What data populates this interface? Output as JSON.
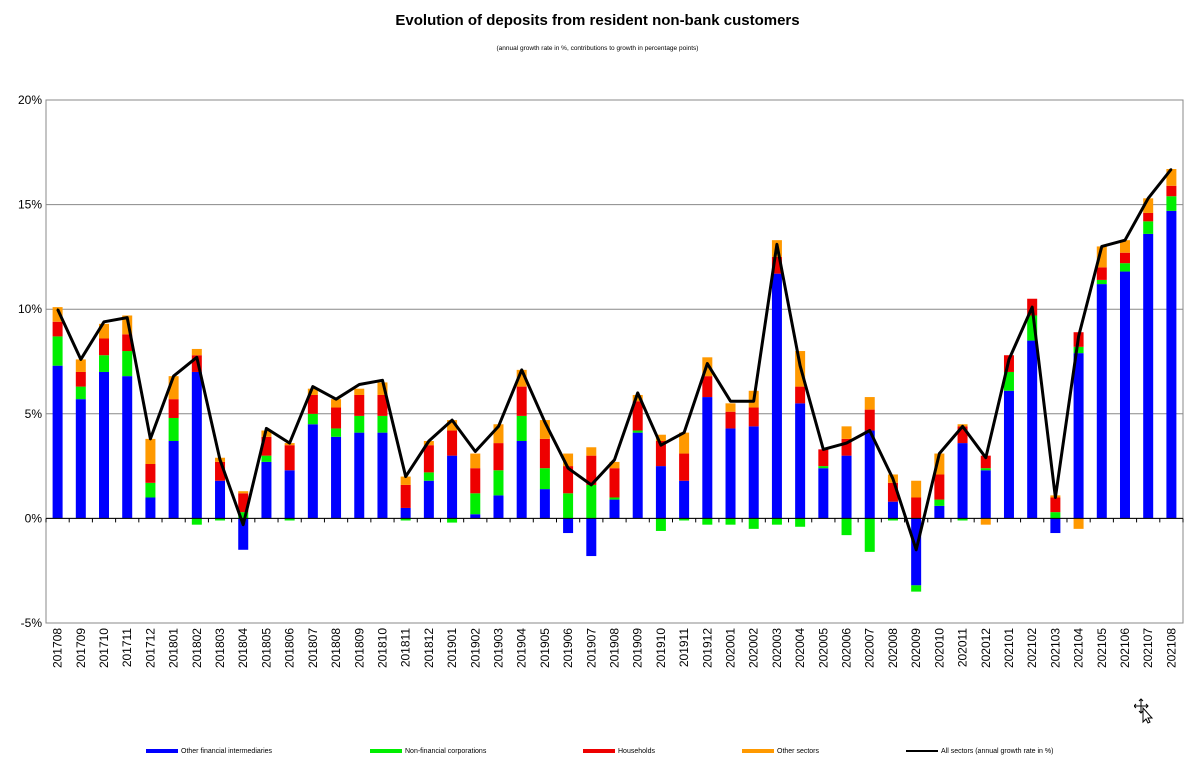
{
  "chart_data": {
    "type": "bar",
    "stacked": true,
    "title": "Evolution of deposits from resident non-bank customers",
    "subtitle": "(annual growth rate in %, contributions to growth in percentage points)",
    "xlabel": "",
    "ylabel": "",
    "ylim": [
      -5,
      20
    ],
    "yticks": [
      "-5%",
      "0%",
      "5%",
      "10%",
      "15%",
      "20%"
    ],
    "grid": true,
    "legend_position": "bottom",
    "categories": [
      "201708",
      "201709",
      "201710",
      "201711",
      "201712",
      "201801",
      "201802",
      "201803",
      "201804",
      "201805",
      "201806",
      "201807",
      "201808",
      "201809",
      "201810",
      "201811",
      "201812",
      "201901",
      "201902",
      "201903",
      "201904",
      "201905",
      "201906",
      "201907",
      "201908",
      "201909",
      "201910",
      "201911",
      "201912",
      "202001",
      "202002",
      "202003",
      "202004",
      "202005",
      "202006",
      "202007",
      "202008",
      "202009",
      "202010",
      "202011",
      "202012",
      "202101",
      "202102",
      "202103",
      "202104",
      "202105",
      "202106",
      "202107",
      "202108"
    ],
    "series": [
      {
        "name": "Other financial intermediaries",
        "color": "#0000FF",
        "values": [
          7.3,
          5.7,
          7.0,
          6.8,
          1.0,
          3.7,
          7.0,
          1.8,
          -1.5,
          2.7,
          2.3,
          4.5,
          3.9,
          4.1,
          4.1,
          0.5,
          1.8,
          3.0,
          0.2,
          1.1,
          3.7,
          1.4,
          -0.7,
          -1.8,
          0.9,
          4.1,
          2.5,
          1.8,
          5.8,
          4.3,
          4.4,
          11.7,
          5.5,
          2.4,
          3.0,
          4.2,
          0.8,
          -3.2,
          0.6,
          3.6,
          2.3,
          6.1,
          8.5,
          -0.7,
          7.9,
          11.2,
          11.8,
          13.6,
          14.7
        ]
      },
      {
        "name": "Non-financial corporations",
        "color": "#00EE00",
        "values": [
          1.4,
          0.6,
          0.8,
          1.2,
          0.7,
          1.1,
          -0.3,
          -0.1,
          0.3,
          0.3,
          -0.1,
          0.5,
          0.4,
          0.8,
          0.8,
          -0.1,
          0.4,
          -0.2,
          1.0,
          1.2,
          1.2,
          1.0,
          1.2,
          1.6,
          0.1,
          0.1,
          -0.6,
          -0.1,
          -0.3,
          -0.3,
          -0.5,
          -0.3,
          -0.4,
          0.1,
          -0.8,
          -1.6,
          -0.1,
          -0.3,
          0.3,
          -0.1,
          0.1,
          0.9,
          1.2,
          0.3,
          0.3,
          0.2,
          0.4,
          0.6,
          0.7
        ]
      },
      {
        "name": "Households",
        "color": "#EE0000",
        "values": [
          0.7,
          0.7,
          0.8,
          0.8,
          0.9,
          0.9,
          0.8,
          0.9,
          0.9,
          0.9,
          1.2,
          0.9,
          1.0,
          1.0,
          1.0,
          1.1,
          1.3,
          1.2,
          1.2,
          1.3,
          1.4,
          1.4,
          1.3,
          1.4,
          1.4,
          1.4,
          1.2,
          1.3,
          1.0,
          0.8,
          0.9,
          0.8,
          0.8,
          0.8,
          0.8,
          1.0,
          0.9,
          1.0,
          1.2,
          0.8,
          0.6,
          0.8,
          0.8,
          0.7,
          0.7,
          0.6,
          0.5,
          0.4,
          0.5
        ]
      },
      {
        "name": "Other sectors",
        "color": "#FF9900",
        "values": [
          0.7,
          0.6,
          0.7,
          0.9,
          1.2,
          1.1,
          0.3,
          0.2,
          0.1,
          0.3,
          0.1,
          0.3,
          0.4,
          0.3,
          0.6,
          0.4,
          0.2,
          0.5,
          0.7,
          0.9,
          0.8,
          0.9,
          0.6,
          0.4,
          0.3,
          0.3,
          0.3,
          1.0,
          0.9,
          0.4,
          0.8,
          0.8,
          1.7,
          0.0,
          0.6,
          0.6,
          0.4,
          0.8,
          1.0,
          0.1,
          -0.3,
          0.0,
          0.0,
          0.1,
          -0.5,
          1.0,
          0.6,
          0.7,
          0.8
        ]
      }
    ],
    "line_series": {
      "name": "All sectors (annual growth rate in %)",
      "color": "#000000",
      "values": [
        10.0,
        7.6,
        9.4,
        9.6,
        3.8,
        6.8,
        7.7,
        2.8,
        -0.3,
        4.3,
        3.6,
        6.3,
        5.7,
        6.4,
        6.6,
        2.0,
        3.7,
        4.7,
        3.2,
        4.4,
        7.1,
        4.6,
        2.4,
        1.6,
        2.8,
        6.0,
        3.5,
        4.1,
        7.4,
        5.6,
        5.6,
        13.1,
        7.3,
        3.3,
        3.6,
        4.2,
        1.9,
        -1.5,
        3.1,
        4.4,
        2.9,
        7.6,
        10.1,
        1.0,
        8.7,
        13.0,
        13.3,
        15.3,
        16.7
      ]
    }
  }
}
